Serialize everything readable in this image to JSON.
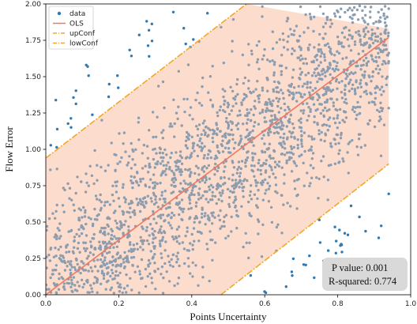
{
  "chart_data": {
    "type": "scatter",
    "xlabel": "Points Uncertainty",
    "ylabel": "Flow Error",
    "xlim": [
      0.0,
      1.0
    ],
    "ylim": [
      0.0,
      2.0
    ],
    "xticks": [
      "0.0",
      "0.2",
      "0.4",
      "0.6",
      "0.8",
      "1.0"
    ],
    "yticks": [
      "0.00",
      "0.25",
      "0.50",
      "0.75",
      "1.00",
      "1.25",
      "1.50",
      "1.75",
      "2.00"
    ],
    "legend": {
      "position": "top-left",
      "entries": [
        "data",
        "OLS",
        "upConf",
        "lowConf"
      ]
    },
    "colors": {
      "data_inside": "#8c9db0",
      "data_outside": "#2e7ab4",
      "ols": "#f07860",
      "conf": "#f5a623",
      "band": "#fbd5c0"
    },
    "data_x_range": [
      0.0,
      0.94
    ],
    "ols_line": {
      "x": [
        0.0,
        0.94
      ],
      "y": [
        0.0,
        1.77
      ]
    },
    "upConf_line": {
      "x": [
        0.0,
        0.55
      ],
      "y": [
        0.94,
        2.0
      ]
    },
    "lowConf_line": {
      "x": [
        0.48,
        0.94
      ],
      "y": [
        0.0,
        0.9
      ]
    },
    "band": {
      "x": [
        0.0,
        0.55,
        0.94,
        0.94,
        0.48,
        0.0
      ],
      "y": [
        0.94,
        2.0,
        1.83,
        0.9,
        0.0,
        0.0
      ]
    },
    "data_points": 2200,
    "annotation": {
      "p_value": "P value: 0.001",
      "r_squared": "R-squared: 0.774"
    }
  }
}
